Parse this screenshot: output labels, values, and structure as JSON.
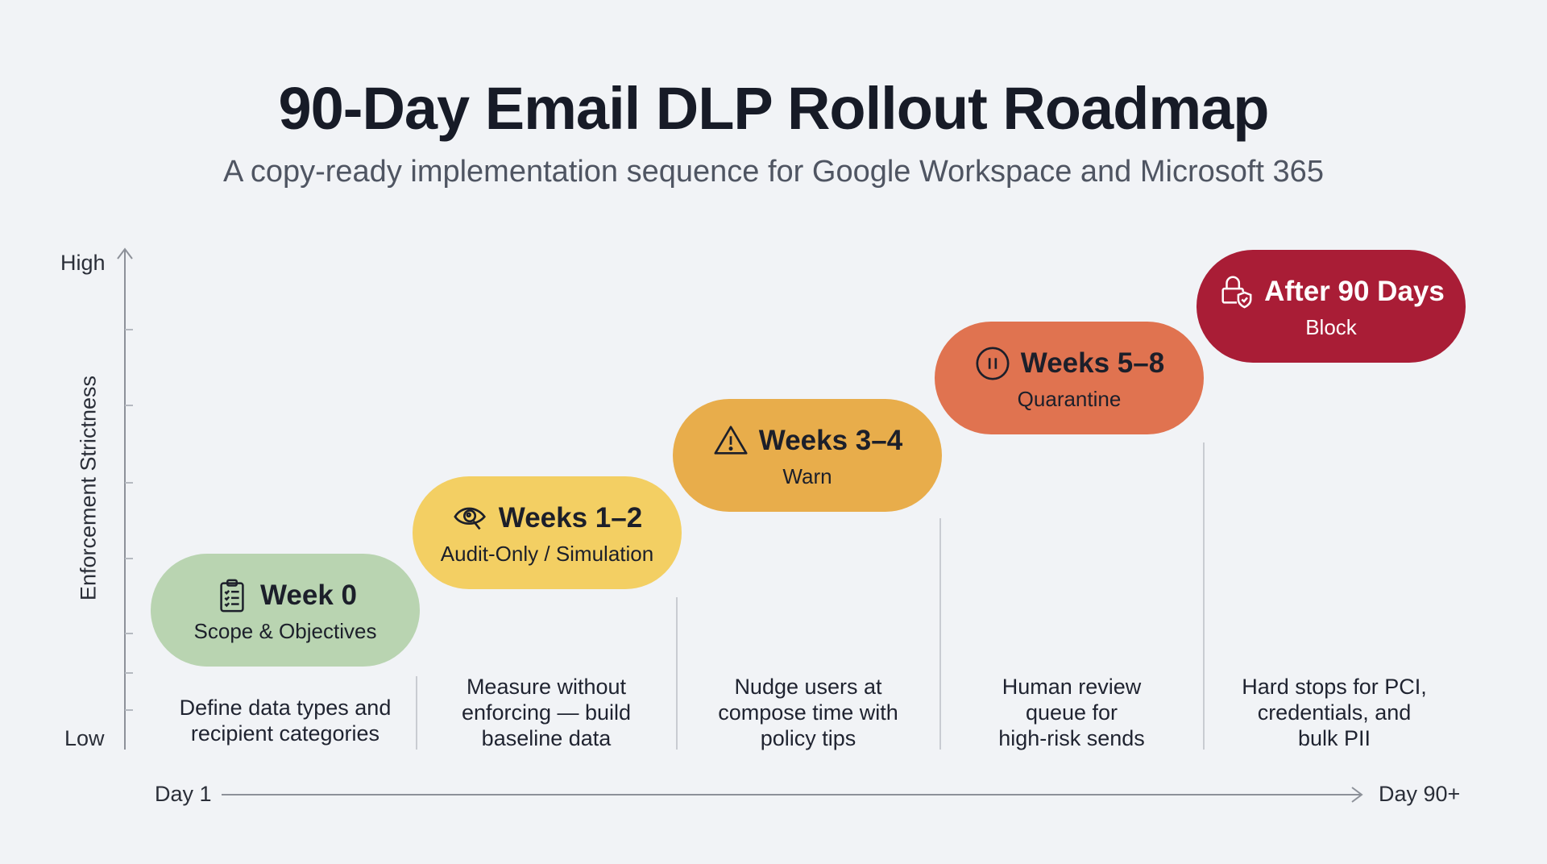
{
  "title": "90-Day Email DLP Rollout Roadmap",
  "subtitle": "A copy-ready implementation sequence for Google Workspace and Microsoft 365",
  "y_axis": {
    "label": "Enforcement Strictness",
    "high": "High",
    "low": "Low"
  },
  "x_axis": {
    "start": "Day 1",
    "end": "Day 90+"
  },
  "stages": [
    {
      "title": "Week 0",
      "subtitle": "Scope & Objectives",
      "icon": "clipboard-checklist-icon",
      "color": "#b9d4b1",
      "text_color": "#1c1f2a",
      "description": [
        "Define data types and",
        "recipient categories"
      ]
    },
    {
      "title": "Weeks 1–2",
      "subtitle": "Audit-Only / Simulation",
      "icon": "eye-magnifier-icon",
      "color": "#f3cf63",
      "text_color": "#1c1f2a",
      "description": [
        "Measure without",
        "enforcing — build",
        "baseline data"
      ]
    },
    {
      "title": "Weeks 3–4",
      "subtitle": "Warn",
      "icon": "warning-triangle-icon",
      "color": "#e8ad4b",
      "text_color": "#1c1f2a",
      "description": [
        "Nudge users at",
        "compose time with",
        "policy tips"
      ]
    },
    {
      "title": "Weeks 5–8",
      "subtitle": "Quarantine",
      "icon": "pause-circle-icon",
      "color": "#e07350",
      "text_color": "#1c1f2a",
      "description": [
        "Human review",
        "queue for",
        "high-risk sends"
      ]
    },
    {
      "title": "After 90 Days",
      "subtitle": "Block",
      "icon": "lock-shield-icon",
      "color": "#a91d36",
      "text_color": "#ffffff",
      "description": [
        "Hard stops for PCI,",
        "credentials, and",
        "bulk PII"
      ]
    }
  ]
}
